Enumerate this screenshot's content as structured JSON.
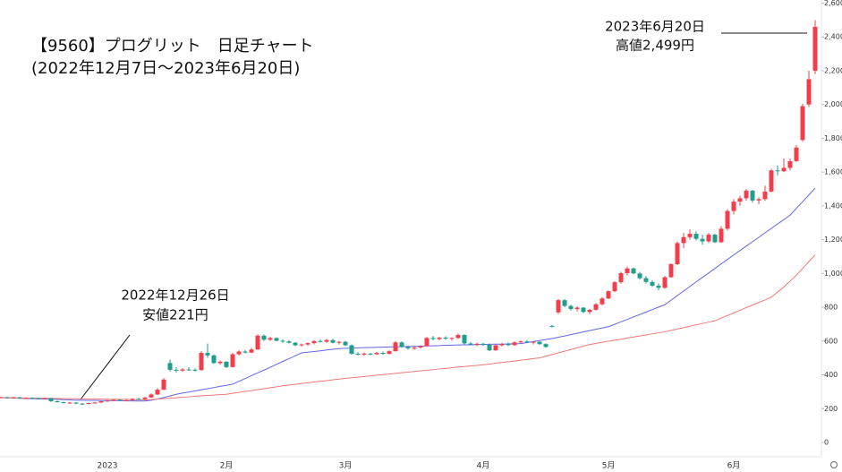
{
  "chart_data": {
    "type": "candlestick",
    "title": "【9560】プログリット　日足チャート",
    "subtitle": "(2022年12月7日～2023年6月20日)",
    "annotations": [
      {
        "text": [
          "2022年12月26日",
          "安値221円"
        ]
      },
      {
        "text": [
          "2023年6月20日",
          "高値2,499円"
        ]
      }
    ],
    "categories": [
      null,
      null,
      null,
      null,
      null,
      null,
      null,
      null,
      null,
      null,
      null,
      null,
      null,
      null,
      null,
      null,
      null,
      null,
      "2023",
      null,
      null,
      null,
      null,
      null,
      null,
      null,
      null,
      null,
      null,
      null,
      null,
      null,
      null,
      null,
      null,
      null,
      null,
      "2月",
      null,
      null,
      null,
      null,
      null,
      null,
      null,
      null,
      null,
      null,
      null,
      null,
      null,
      null,
      null,
      null,
      null,
      null,
      "3月",
      null,
      null,
      null,
      null,
      null,
      null,
      null,
      null,
      null,
      null,
      null,
      null,
      null,
      null,
      null,
      null,
      null,
      null,
      null,
      null,
      null,
      "4月",
      null,
      null,
      null,
      null,
      null,
      null,
      null,
      null,
      null,
      null,
      null,
      null,
      null,
      null,
      null,
      null,
      null,
      null,
      null,
      "5月",
      null,
      null,
      null,
      null,
      null,
      null,
      null,
      null,
      null,
      null,
      null,
      null,
      null,
      null,
      null,
      null,
      null,
      null,
      null,
      "6月",
      null,
      null,
      null,
      null,
      null,
      null,
      null,
      null,
      null,
      null,
      null,
      null,
      null
    ],
    "open": [
      268,
      266,
      268,
      265,
      267,
      262,
      264,
      262,
      260,
      262,
      244,
      238,
      234,
      236,
      230,
      228,
      233,
      236,
      244,
      248,
      252,
      248,
      250,
      258,
      256,
      266,
      284,
      312,
      470,
      430,
      425,
      432,
      430,
      428,
      530,
      515,
      470,
      478,
      446,
      522,
      538,
      532,
      550,
      632,
      608,
      618,
      602,
      598,
      590,
      575,
      580,
      588,
      600,
      596,
      606,
      590,
      596,
      575,
      525,
      520,
      526,
      522,
      530,
      524,
      540,
      592,
      565,
      556,
      562,
      570,
      618,
      612,
      620,
      614,
      618,
      636,
      586,
      580,
      584,
      578,
      545,
      575,
      582,
      576,
      592,
      598,
      592,
      596,
      582,
      690,
      770,
      842,
      808,
      790,
      798,
      772,
      785,
      818,
      852,
      895,
      948,
      1002,
      1030,
      1000,
      972,
      950,
      928,
      915,
      978,
      1055,
      1180,
      1215,
      1235,
      1205,
      1190,
      1230,
      1185,
      1265,
      1370,
      1425,
      1445,
      1490,
      1432,
      1440,
      1485,
      1610,
      1605,
      1625,
      1665,
      1790,
      2000,
      2200
    ],
    "high": [
      272,
      270,
      271,
      270,
      270,
      267,
      268,
      266,
      265,
      263,
      248,
      242,
      240,
      238,
      234,
      236,
      240,
      246,
      252,
      256,
      258,
      254,
      262,
      264,
      270,
      290,
      320,
      380,
      490,
      445,
      440,
      445,
      438,
      540,
      585,
      520,
      485,
      480,
      530,
      545,
      548,
      560,
      640,
      640,
      625,
      622,
      610,
      605,
      595,
      585,
      592,
      605,
      610,
      612,
      612,
      600,
      600,
      580,
      535,
      532,
      530,
      535,
      538,
      545,
      600,
      598,
      572,
      568,
      575,
      625,
      630,
      625,
      628,
      622,
      645,
      640,
      595,
      590,
      590,
      585,
      580,
      590,
      592,
      598,
      605,
      606,
      600,
      598,
      588,
      695,
      850,
      848,
      815,
      805,
      800,
      790,
      825,
      860,
      900,
      955,
      1010,
      1040,
      1035,
      1010,
      985,
      960,
      940,
      985,
      1060,
      1190,
      1240,
      1260,
      1250,
      1230,
      1240,
      1235,
      1280,
      1380,
      1440,
      1460,
      1500,
      1495,
      1450,
      1520,
      1620,
      1640,
      1680,
      1680,
      1760,
      2005,
      2200,
      2499
    ],
    "low": [
      264,
      262,
      263,
      262,
      260,
      258,
      258,
      256,
      254,
      240,
      236,
      230,
      229,
      226,
      221,
      225,
      230,
      234,
      240,
      244,
      246,
      244,
      248,
      252,
      254,
      264,
      280,
      310,
      420,
      415,
      418,
      425,
      420,
      425,
      500,
      465,
      460,
      440,
      444,
      515,
      526,
      528,
      548,
      600,
      600,
      598,
      590,
      585,
      570,
      568,
      572,
      580,
      592,
      590,
      586,
      580,
      570,
      520,
      515,
      512,
      516,
      518,
      520,
      522,
      538,
      560,
      550,
      548,
      555,
      565,
      605,
      604,
      608,
      602,
      612,
      580,
      575,
      570,
      572,
      540,
      542,
      568,
      570,
      572,
      585,
      588,
      580,
      578,
      560,
      680,
      760,
      800,
      780,
      775,
      765,
      760,
      780,
      812,
      848,
      890,
      940,
      990,
      995,
      965,
      940,
      920,
      900,
      910,
      975,
      1050,
      1150,
      1200,
      1195,
      1170,
      1180,
      1180,
      1180,
      1255,
      1350,
      1400,
      1430,
      1420,
      1410,
      1430,
      1480,
      1580,
      1600,
      1610,
      1660,
      1780,
      1985,
      2180
    ],
    "close": [
      266,
      268,
      265,
      267,
      264,
      263,
      262,
      260,
      262,
      244,
      238,
      234,
      236,
      230,
      228,
      233,
      236,
      244,
      248,
      252,
      248,
      250,
      258,
      256,
      266,
      284,
      312,
      372,
      430,
      425,
      432,
      430,
      428,
      530,
      515,
      470,
      478,
      446,
      522,
      538,
      532,
      550,
      632,
      608,
      618,
      602,
      598,
      590,
      575,
      580,
      588,
      600,
      596,
      606,
      590,
      596,
      575,
      525,
      520,
      526,
      522,
      530,
      524,
      540,
      592,
      565,
      556,
      562,
      570,
      618,
      612,
      620,
      614,
      618,
      636,
      586,
      580,
      584,
      578,
      545,
      575,
      582,
      576,
      592,
      598,
      592,
      596,
      582,
      565,
      688,
      842,
      808,
      790,
      798,
      772,
      785,
      818,
      852,
      895,
      948,
      1002,
      1030,
      1000,
      972,
      950,
      928,
      915,
      978,
      1055,
      1180,
      1215,
      1235,
      1205,
      1190,
      1230,
      1185,
      1265,
      1370,
      1425,
      1445,
      1490,
      1432,
      1440,
      1485,
      1610,
      1605,
      1625,
      1665,
      1745,
      1990,
      2150,
      2460
    ],
    "up_color": "#f03e4c",
    "down_color": "#1f9e8c",
    "moving_averages": [
      {
        "color": "#6266e6",
        "values": [
          266,
          265,
          264,
          263,
          261,
          260,
          259,
          258,
          257,
          256,
          255,
          253,
          252,
          250,
          250,
          249,
          249,
          248,
          248,
          247,
          247,
          246,
          246,
          245,
          245,
          250,
          258,
          266,
          275,
          285,
          292,
          298,
          305,
          312,
          318,
          325,
          332,
          338,
          345,
          362,
          378,
          395,
          412,
          428,
          445,
          462,
          479,
          496,
          513,
          530,
          534,
          538,
          542,
          547,
          551,
          555,
          557,
          558,
          560,
          561,
          562,
          563,
          564,
          565,
          566,
          567,
          568,
          569,
          570,
          571,
          572,
          573,
          575,
          576,
          577,
          578,
          578,
          579,
          580,
          581,
          582,
          582,
          583,
          584,
          585,
          591,
          597,
          603,
          609,
          615,
          623,
          630,
          638,
          646,
          654,
          662,
          670,
          677,
          685,
          699,
          714,
          728,
          743,
          757,
          772,
          786,
          801,
          815,
          842,
          869,
          896,
          923,
          950,
          977,
          1003,
          1030,
          1057,
          1083,
          1110,
          1136,
          1162,
          1188,
          1214,
          1241,
          1267,
          1293,
          1319,
          1345,
          1385,
          1425,
          1465,
          1505
        ]
      },
      {
        "color": "#f07878",
        "values": [
          266,
          265,
          264,
          264,
          263,
          263,
          262,
          262,
          261,
          261,
          260,
          260,
          259,
          259,
          258,
          258,
          257,
          257,
          256,
          256,
          255,
          255,
          254,
          253,
          252,
          254,
          257,
          260,
          262,
          265,
          268,
          270,
          273,
          276,
          278,
          280,
          283,
          285,
          291,
          296,
          302,
          307,
          313,
          318,
          324,
          329,
          335,
          340,
          344,
          349,
          353,
          358,
          362,
          366,
          371,
          375,
          379,
          383,
          386,
          390,
          394,
          398,
          401,
          405,
          409,
          413,
          416,
          420,
          424,
          427,
          431,
          435,
          438,
          442,
          446,
          449,
          453,
          456,
          460,
          464,
          469,
          473,
          478,
          482,
          487,
          491,
          496,
          500,
          510,
          520,
          530,
          540,
          550,
          560,
          570,
          580,
          586,
          593,
          599,
          605,
          611,
          618,
          624,
          630,
          636,
          643,
          649,
          655,
          663,
          671,
          679,
          688,
          696,
          704,
          712,
          720,
          736,
          751,
          767,
          782,
          798,
          813,
          829,
          844,
          860,
          890,
          920,
          955,
          990,
          1030,
          1070,
          1110
        ]
      }
    ],
    "ylim": [
      0,
      2600
    ],
    "yticks": [
      0,
      200,
      400,
      600,
      800,
      {
        "value": 1000,
        "label": "1,000"
      },
      {
        "value": 1200,
        "label": "1,200"
      },
      {
        "value": 1400,
        "label": "1,400"
      },
      {
        "value": 1600,
        "label": "1,600"
      },
      {
        "value": 1800,
        "label": "1,800"
      },
      {
        "value": 2000,
        "label": "2,000"
      },
      {
        "value": 2200,
        "label": "2,200"
      },
      {
        "value": 2400,
        "label": "2,400"
      },
      {
        "value": 2600,
        "label": "2,600"
      }
    ],
    "grid": false
  }
}
